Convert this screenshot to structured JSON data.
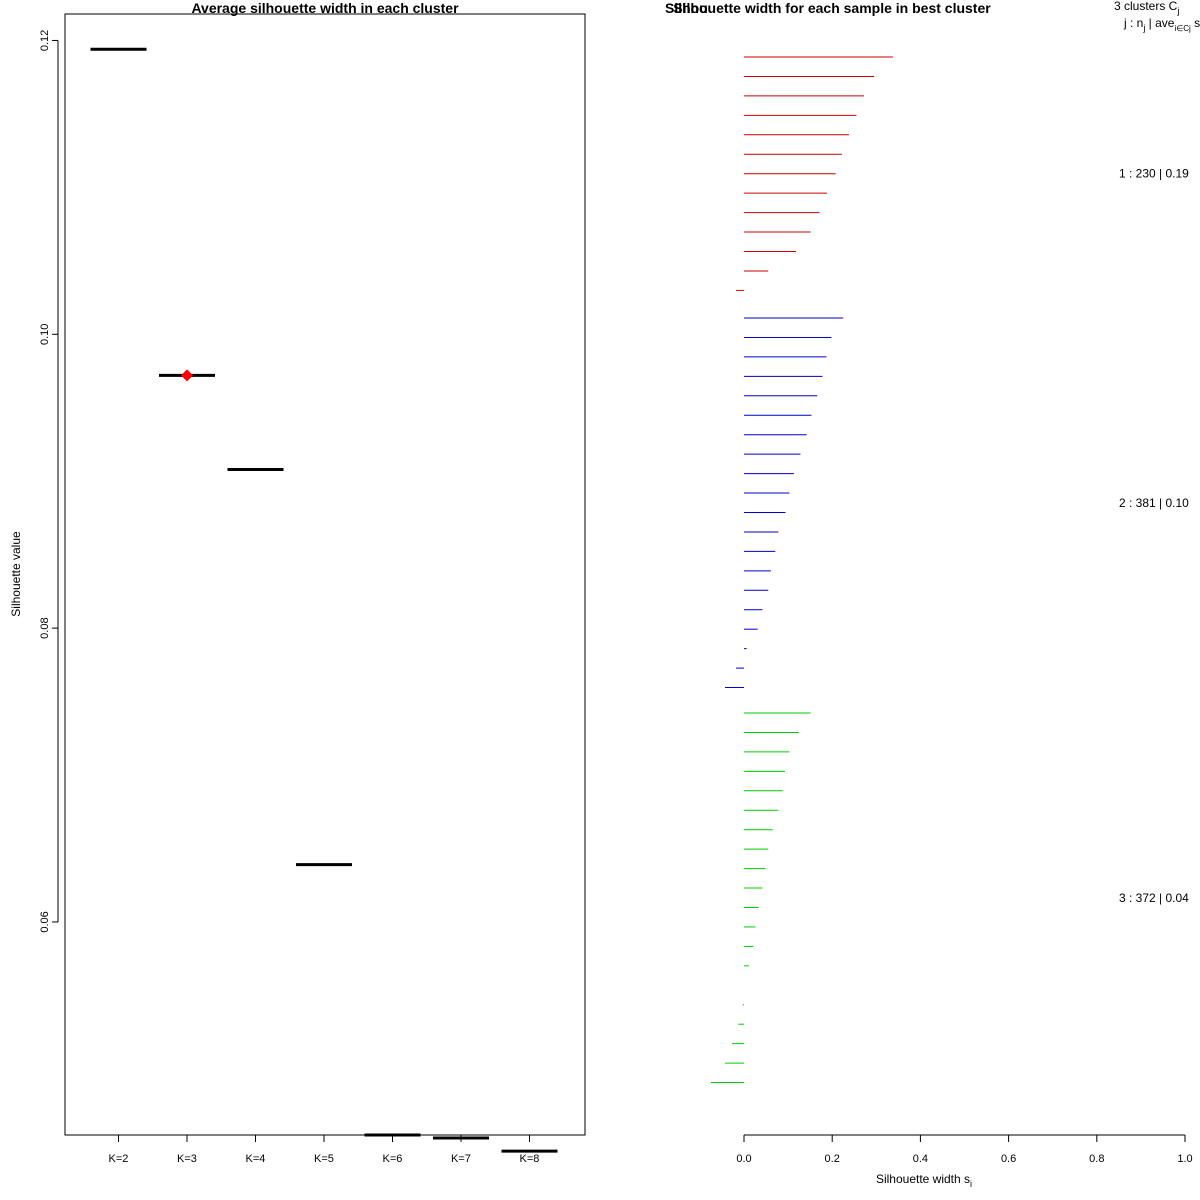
{
  "chart_data": [
    {
      "type": "scatter",
      "title": "Average silhouette width in each cluster",
      "xlabel": "",
      "ylabel": "Silhouette value",
      "categories": [
        "K=2",
        "K=3",
        "K=4",
        "K=5",
        "K=6",
        "K=7",
        "K=8"
      ],
      "values": [
        0.1194,
        0.0972,
        0.0908,
        0.0639,
        0.0455,
        0.0453,
        0.0444
      ],
      "best_index": 1,
      "best_marker_color": "#ff0000",
      "ylim": [
        0.0455,
        0.1218
      ],
      "yticks": [
        0.06,
        0.08,
        0.1,
        0.12
      ],
      "ytick_labels": [
        "0.06",
        "0.08",
        "0.10",
        "0.12"
      ]
    },
    {
      "type": "bar",
      "orientation": "horizontal",
      "title": "Silhouette width for each sample in best cluster",
      "title_overlap_text": "Silhou",
      "xlabel": "Silhouette width s",
      "xlabel_subscript": "i",
      "xlim": [
        0.0,
        1.0
      ],
      "xticks": [
        0.0,
        0.2,
        0.4,
        0.6,
        0.8,
        1.0
      ],
      "xtick_labels": [
        "0.0",
        "0.2",
        "0.4",
        "0.6",
        "0.8",
        "1.0"
      ],
      "header_line1": "3  clusters  C",
      "header_line1_sub": "j",
      "header_line2_a": "j :  n",
      "header_line2_sub1": "j",
      "header_line2_b": " | ave",
      "header_line2_sub2": "i∈Cj",
      "header_line2_c": "  s",
      "clusters": [
        {
          "id": 1,
          "color": "#cd0000",
          "label": "1 :   230  |  0.19",
          "values": [
            0.338,
            0.295,
            0.272,
            0.255,
            0.238,
            0.222,
            0.208,
            0.188,
            0.171,
            0.151,
            0.118,
            0.055,
            -0.018
          ]
        },
        {
          "id": 2,
          "color": "#0000cd",
          "label": "2 :   381  |  0.10",
          "values": [
            0.225,
            0.198,
            0.187,
            0.178,
            0.166,
            0.153,
            0.142,
            0.128,
            0.113,
            0.103,
            0.094,
            0.078,
            0.071,
            0.061,
            0.055,
            0.042,
            0.031,
            0.006,
            -0.018,
            -0.043
          ]
        },
        {
          "id": 3,
          "color": "#00cd00",
          "label": "3 :   372  |  0.04",
          "values": [
            0.151,
            0.124,
            0.103,
            0.093,
            0.088,
            0.078,
            0.065,
            0.055,
            0.048,
            0.042,
            0.033,
            0.026,
            0.021,
            0.011,
            0.0,
            -0.003,
            -0.013,
            -0.027,
            -0.043,
            -0.075
          ]
        }
      ]
    }
  ]
}
